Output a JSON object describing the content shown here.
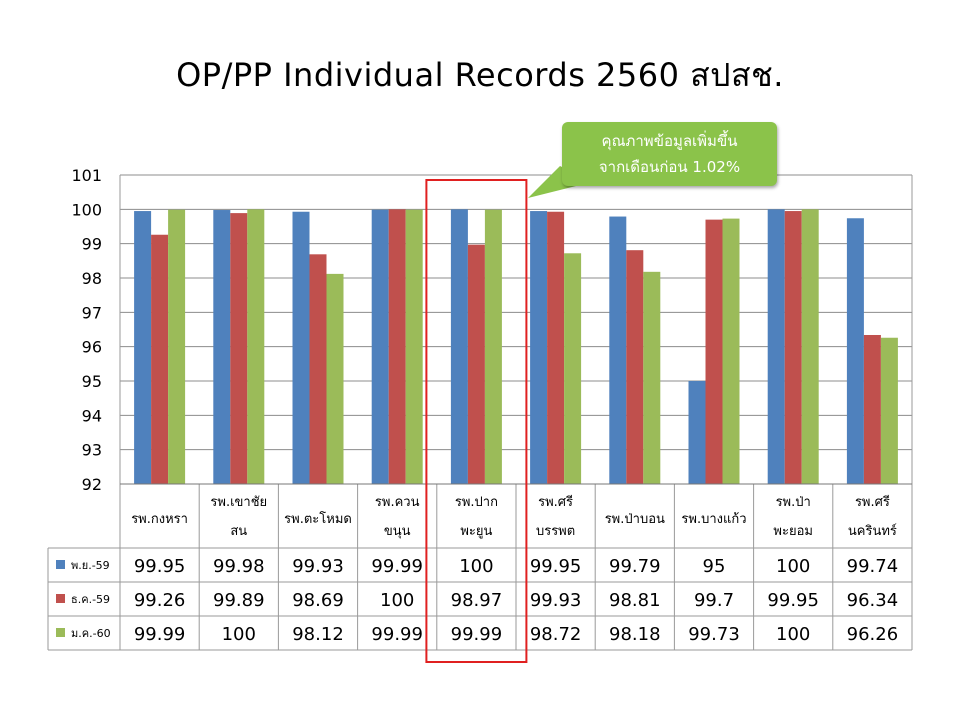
{
  "title": "OP/PP Individual Records 2560 สปสช.",
  "callout": {
    "line1": "คุณภาพข้อมูลเพิ่มขึ้น",
    "line2": "จากเดือนก่อน 1.02%",
    "color": "#8bc34a"
  },
  "highlight": {
    "category_index": 4,
    "color": "#e02020"
  },
  "chart_data": {
    "type": "bar",
    "ylim": [
      92,
      101
    ],
    "yticks": [
      "92",
      "93",
      "94",
      "95",
      "96",
      "97",
      "98",
      "99",
      "100",
      "101"
    ],
    "grid": true,
    "categories": [
      [
        "รพ.กงหรา"
      ],
      [
        "รพ.เขาชัย",
        "สน"
      ],
      [
        "รพ.ตะโหมด"
      ],
      [
        "รพ.ควน",
        "ขนุน"
      ],
      [
        "รพ.ปาก",
        "พะยูน"
      ],
      [
        "รพ.ศรี",
        "บรรพต"
      ],
      [
        "รพ.ป่าบอน"
      ],
      [
        "รพ.บางแก้ว"
      ],
      [
        "รพ.ป่า",
        "พะยอม"
      ],
      [
        "รพ.ศรี",
        "นครินทร์"
      ]
    ],
    "series": [
      {
        "name": "พ.ย.-59",
        "color": "#4f81bd",
        "values": [
          99.95,
          99.98,
          99.93,
          99.99,
          100,
          99.95,
          99.79,
          95,
          100,
          99.74
        ],
        "labels": [
          "99.95",
          "99.98",
          "99.93",
          "99.99",
          "100",
          "99.95",
          "99.79",
          "95",
          "100",
          "99.74"
        ]
      },
      {
        "name": "ธ.ค.-59",
        "color": "#c0504d",
        "values": [
          99.26,
          99.89,
          98.69,
          100,
          98.97,
          99.93,
          98.81,
          99.7,
          99.95,
          96.34
        ],
        "labels": [
          "99.26",
          "99.89",
          "98.69",
          "100",
          "98.97",
          "99.93",
          "98.81",
          "99.7",
          "99.95",
          "96.34"
        ]
      },
      {
        "name": "ม.ค.-60",
        "color": "#9bbb59",
        "values": [
          99.99,
          100,
          98.12,
          99.99,
          99.99,
          98.72,
          98.18,
          99.73,
          100,
          96.26
        ],
        "labels": [
          "99.99",
          "100",
          "98.12",
          "99.99",
          "99.99",
          "98.72",
          "98.18",
          "99.73",
          "100",
          "96.26"
        ]
      }
    ]
  }
}
